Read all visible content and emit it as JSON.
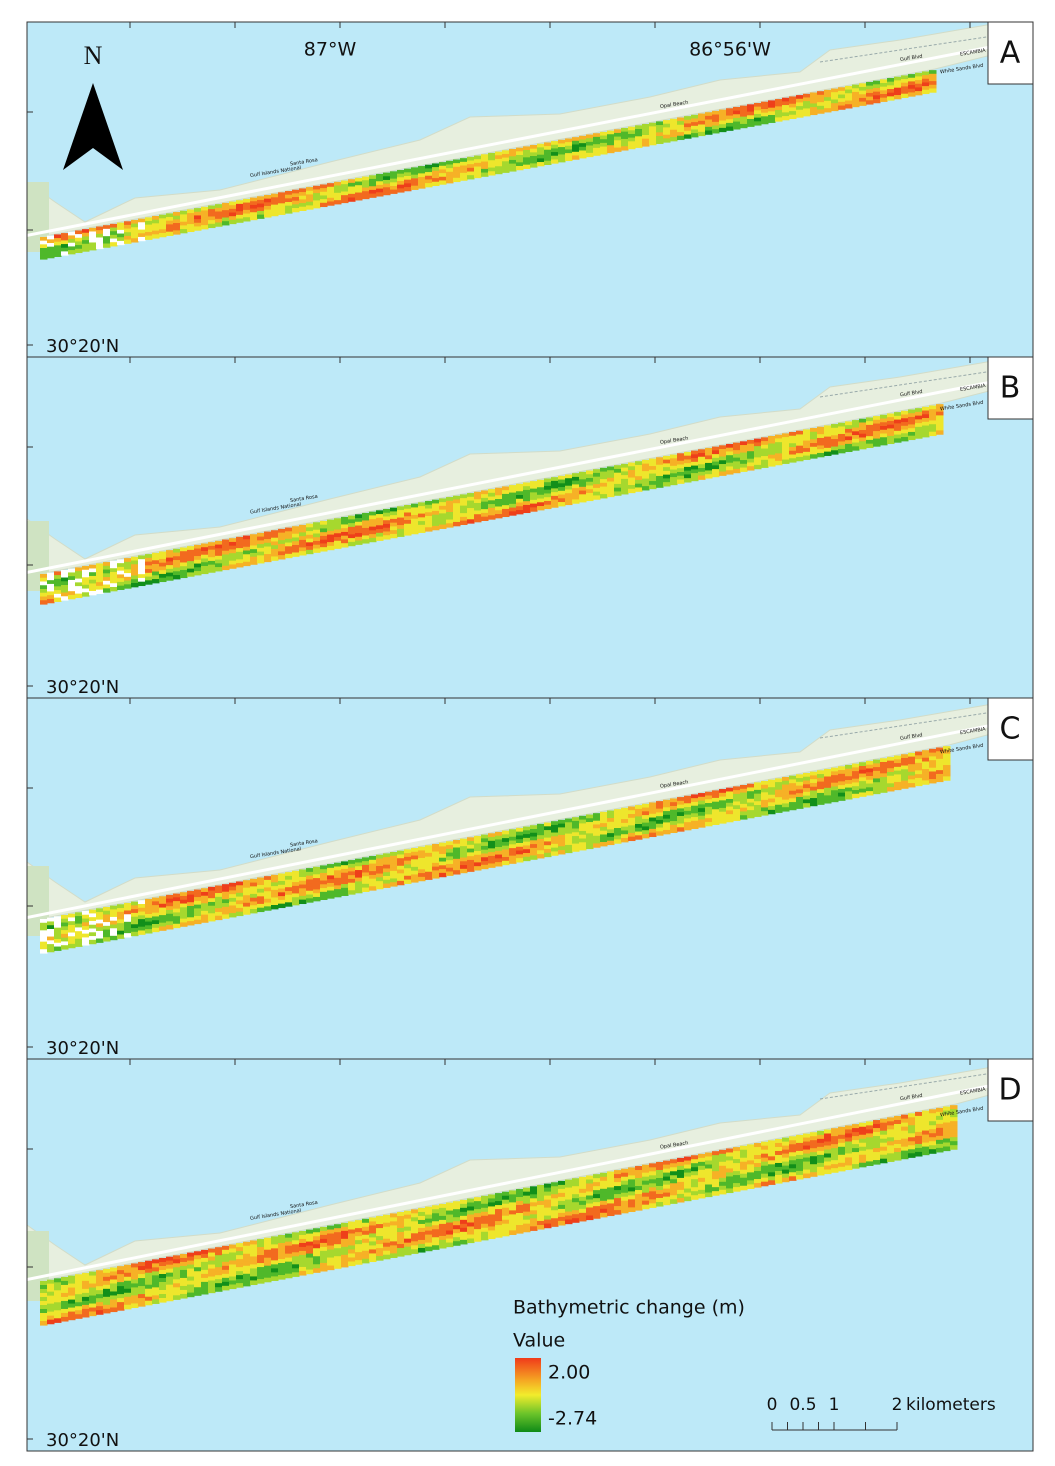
{
  "north": "N",
  "lon_labels": [
    "87°W",
    "86°56'W"
  ],
  "panels": [
    {
      "label": "A",
      "lat_label": "30°20'N"
    },
    {
      "label": "B",
      "lat_label": "30°20'N"
    },
    {
      "label": "C",
      "lat_label": "30°20'N"
    },
    {
      "label": "D",
      "lat_label": "30°20'N"
    }
  ],
  "place_labels": [
    "Gulf Islands National",
    "Santa Rosa",
    "Opal Beach",
    "Gulf Blvd",
    "White Sands Blvd",
    "ESCAMBIA"
  ],
  "legend": {
    "title": "Bathymetric change (m)",
    "subtitle": "Value",
    "max": "2.00",
    "min": "-2.74"
  },
  "scale_bar": {
    "ticks": [
      "0",
      "0.5",
      "1",
      "2"
    ],
    "unit": "kilometers"
  }
}
